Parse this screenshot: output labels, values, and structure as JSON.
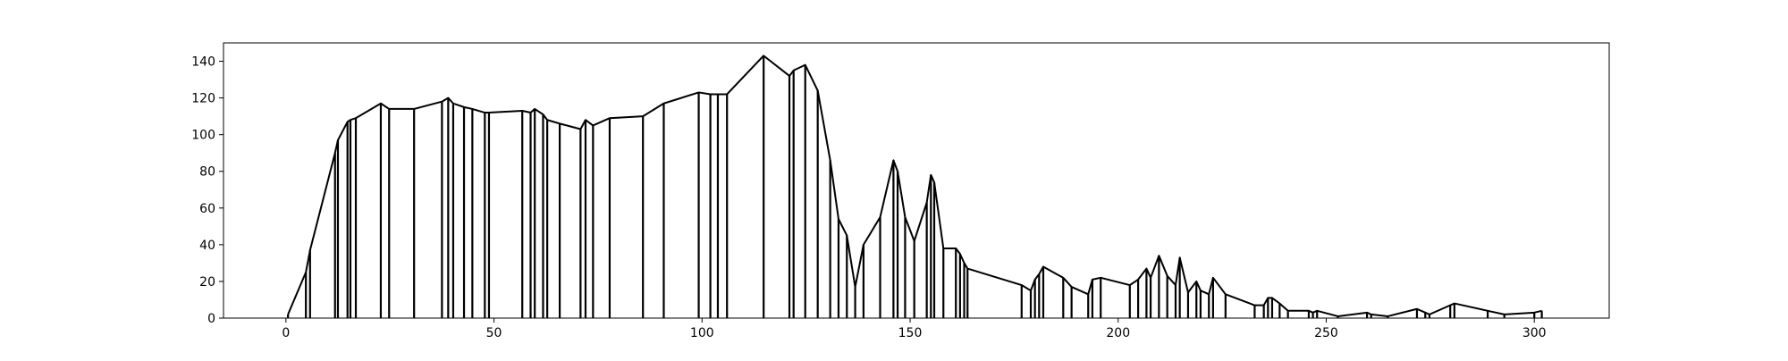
{
  "chart_data": {
    "type": "line",
    "title": "",
    "xlabel": "",
    "ylabel": "",
    "xlim": [
      -15,
      318
    ],
    "ylim": [
      0,
      150
    ],
    "grid": false,
    "xticks": [
      0,
      50,
      100,
      150,
      200,
      250,
      300
    ],
    "yticks": [
      0,
      20,
      40,
      60,
      80,
      100,
      120,
      140
    ],
    "line_color": "#000000",
    "drop_lines": true,
    "series": [
      {
        "x": [
          0.5,
          4.8,
          5.8,
          11.8,
          12.5,
          14.8,
          15.5,
          16.8,
          22.8,
          24.8,
          30.8,
          37.5,
          39.0,
          40.2,
          42.8,
          44.8,
          47.8,
          48.8,
          56.8,
          58.8,
          59.8,
          61.8,
          62.8,
          65.8,
          70.8,
          72.0,
          73.8,
          77.8,
          85.8,
          90.8,
          99.2,
          102.0,
          103.8,
          106.0,
          114.8,
          121.0,
          122.0,
          124.8,
          127.8,
          130.8,
          132.8,
          134.8,
          136.8,
          138.8,
          142.8,
          146.0,
          147.0,
          148.8,
          151.0,
          154.0,
          155.0,
          155.8,
          158.0,
          161.0,
          162.0,
          163.0,
          163.8,
          176.8,
          179.0,
          180.0,
          181.0,
          182.0,
          186.8,
          188.8,
          192.8,
          193.8,
          195.8,
          202.8,
          204.8,
          206.8,
          207.8,
          209.8,
          211.8,
          213.8,
          214.8,
          216.8,
          218.8,
          219.8,
          221.8,
          222.8,
          225.8,
          232.8,
          235.0,
          236.0,
          237.0,
          238.8,
          240.8,
          245.8,
          246.8,
          247.8,
          252.8,
          259.8,
          260.8,
          264.8,
          271.8,
          273.8,
          274.8,
          279.8,
          280.8,
          288.8,
          292.8,
          300.0,
          301.8
        ],
        "y": [
          2,
          25,
          37,
          90,
          97,
          107,
          108,
          109,
          117,
          114,
          114,
          118,
          120,
          117,
          115,
          114,
          112,
          112,
          113,
          112,
          114,
          111,
          108,
          106,
          103,
          108,
          105,
          109,
          110,
          117,
          123,
          122,
          122,
          122,
          143,
          132,
          135,
          138,
          124,
          86,
          54,
          45,
          17,
          40,
          55,
          86,
          80,
          55,
          42,
          63,
          78,
          74,
          38,
          38,
          35,
          30,
          27,
          18,
          15,
          21,
          24,
          28,
          22,
          17,
          13,
          21,
          22,
          18,
          21,
          27,
          22,
          34,
          23,
          18,
          33,
          14,
          20,
          15,
          13,
          22,
          13,
          7,
          7,
          11,
          11,
          8,
          4,
          4,
          3,
          4,
          1,
          3,
          2,
          1,
          5,
          3,
          2,
          7,
          8,
          4,
          2,
          3,
          4
        ]
      }
    ]
  }
}
